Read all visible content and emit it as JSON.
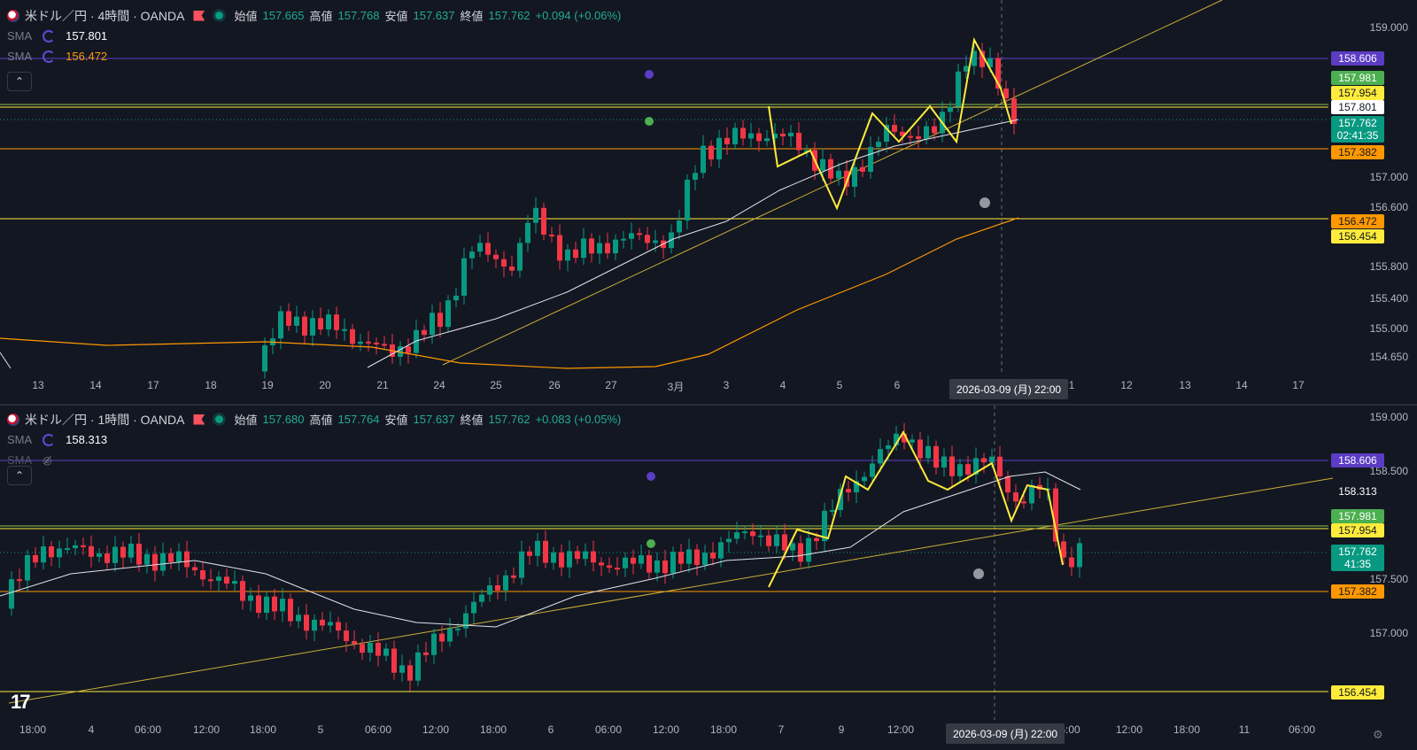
{
  "pane1": {
    "symbol": "米ドル／円 · 4時間 · OANDA",
    "ohlc": [
      {
        "k": "始値",
        "v": "157.665"
      },
      {
        "k": "高値",
        "v": "157.768"
      },
      {
        "k": "安値",
        "v": "157.637"
      },
      {
        "k": "終値",
        "v": "157.762"
      }
    ],
    "change": "+0.094 (+0.06%)",
    "sma1": {
      "label": "SMA",
      "value": "157.801"
    },
    "sma2": {
      "label": "SMA",
      "value": "156.472"
    },
    "collapse": "⌃",
    "price_axis": [
      "159.000",
      "157.000",
      "156.600",
      "155.800",
      "155.400",
      "155.000",
      "154.650"
    ],
    "tags": [
      {
        "text": "158.606",
        "bg": "#5b3cc4",
        "fg": "#ffffff"
      },
      {
        "text": "157.981",
        "bg": "#4caf50",
        "fg": "#ffffff"
      },
      {
        "text": "157.954",
        "bg": "#ffeb3b",
        "fg": "#131722"
      },
      {
        "text": "157.801",
        "bg": "#ffffff",
        "fg": "#131722"
      },
      {
        "text": "157.762",
        "bg": "#089981",
        "fg": "#ffffff"
      },
      {
        "text": "02:41:35",
        "bg": "#089981",
        "fg": "#ffffff"
      },
      {
        "text": "157.382",
        "bg": "#ff9800",
        "fg": "#131722"
      },
      {
        "text": "156.472",
        "bg": "#ff9800",
        "fg": "#131722"
      },
      {
        "text": "156.454",
        "bg": "#ffeb3b",
        "fg": "#131722"
      }
    ],
    "time_axis": [
      "13",
      "14",
      "17",
      "18",
      "19",
      "20",
      "21",
      "24",
      "25",
      "26",
      "27",
      "3月",
      "3",
      "4",
      "5",
      "6",
      "1",
      "12",
      "13",
      "14",
      "17"
    ],
    "crosshair_time": "2026-03-09 (月)   22:00"
  },
  "pane2": {
    "symbol": "米ドル／円 · 1時間 · OANDA",
    "ohlc": [
      {
        "k": "始値",
        "v": "157.680"
      },
      {
        "k": "高値",
        "v": "157.764"
      },
      {
        "k": "安値",
        "v": "157.637"
      },
      {
        "k": "終値",
        "v": "157.762"
      }
    ],
    "change": "+0.083 (+0.05%)",
    "sma1": {
      "label": "SMA",
      "value": "158.313"
    },
    "sma2": {
      "label": "SMA"
    },
    "collapse": "⌃",
    "price_axis": [
      "159.000",
      "158.500",
      "157.500",
      "157.000"
    ],
    "tags": [
      {
        "text": "158.606",
        "bg": "#5b3cc4",
        "fg": "#ffffff"
      },
      {
        "text": "158.313",
        "bg": "#131722",
        "fg": "#ffffff"
      },
      {
        "text": "157.981",
        "bg": "#4caf50",
        "fg": "#ffffff"
      },
      {
        "text": "157.954",
        "bg": "#ffeb3b",
        "fg": "#131722"
      },
      {
        "text": "157.762",
        "bg": "#089981",
        "fg": "#ffffff"
      },
      {
        "text": "41:35",
        "bg": "#089981",
        "fg": "#ffffff"
      },
      {
        "text": "157.382",
        "bg": "#ff9800",
        "fg": "#131722"
      },
      {
        "text": "156.454",
        "bg": "#ffeb3b",
        "fg": "#131722"
      }
    ],
    "time_axis": [
      "18:00",
      "4",
      "06:00",
      "12:00",
      "18:00",
      "5",
      "06:00",
      "12:00",
      "18:00",
      "6",
      "06:00",
      "12:00",
      "18:00",
      "7",
      "9",
      "12:00",
      "6:00",
      "12:00",
      "18:00",
      "11",
      "06:00"
    ],
    "crosshair_time": "2026-03-09 (月)   22:00"
  },
  "colors": {
    "up": "#089981",
    "down": "#f23645",
    "accent": "#5b3cc4"
  }
}
